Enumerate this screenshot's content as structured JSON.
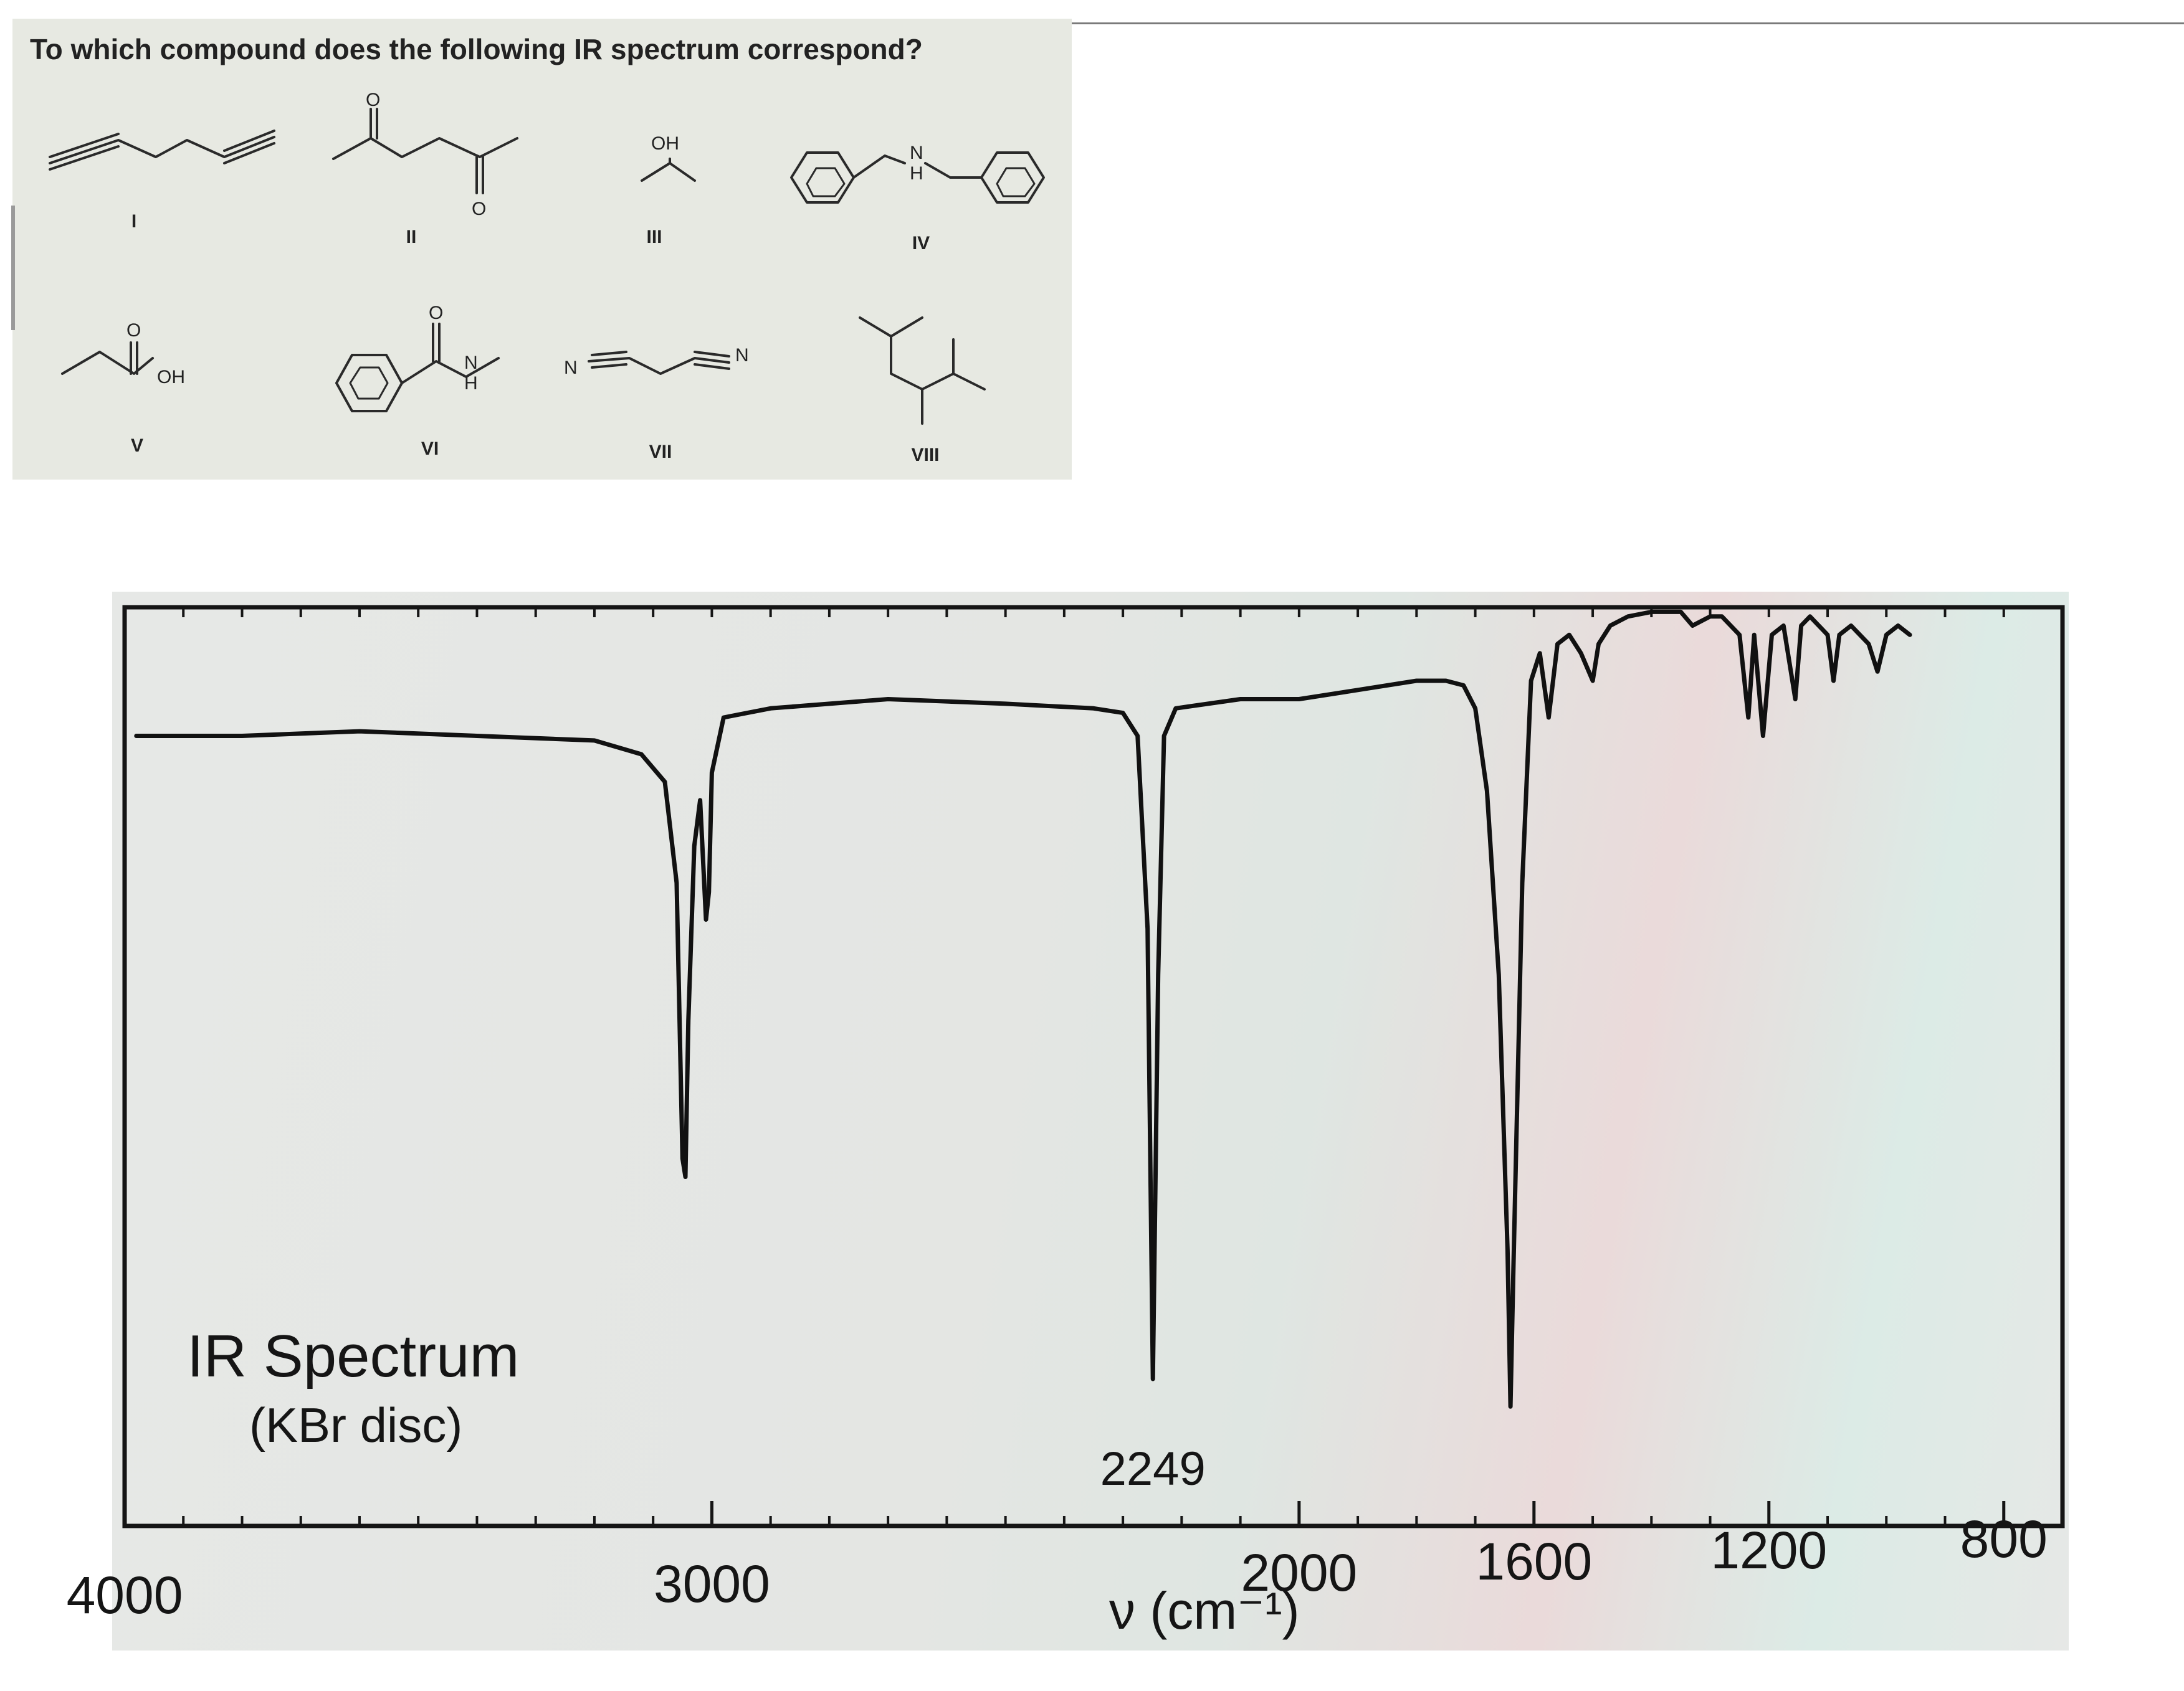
{
  "question": "To which compound does the following IR spectrum correspond?",
  "compounds": {
    "labels": [
      "I",
      "II",
      "III",
      "IV",
      "V",
      "VI",
      "VII",
      "VIII"
    ],
    "atom_labels": {
      "oh": "OH",
      "o": "O",
      "n": "N",
      "h": "H"
    }
  },
  "chart_data": {
    "type": "line",
    "title": "IR Spectrum",
    "subtitle": "(KBr disc)",
    "xlabel": "ν (cm⁻¹)",
    "x_axis_reversed": true,
    "xlim": [
      4000,
      700
    ],
    "x_ticks": [
      {
        "value": 4000,
        "label": "4000"
      },
      {
        "value": 3000,
        "label": "3000"
      },
      {
        "value": 2000,
        "label": "2000"
      },
      {
        "value": 1600,
        "label": "1600"
      },
      {
        "value": 1200,
        "label": "1200"
      },
      {
        "value": 800,
        "label": "800"
      }
    ],
    "y_quantity": "transmittance (%)",
    "ylim": [
      0,
      100
    ],
    "grid": false,
    "series": [
      {
        "color": "#111111",
        "points": [
          [
            3980,
            86
          ],
          [
            3800,
            86
          ],
          [
            3600,
            86.5
          ],
          [
            3400,
            86
          ],
          [
            3200,
            85.5
          ],
          [
            3120,
            84
          ],
          [
            3080,
            81
          ],
          [
            3060,
            70
          ],
          [
            3050,
            40
          ],
          [
            3045,
            38
          ],
          [
            3040,
            55
          ],
          [
            3030,
            74
          ],
          [
            3020,
            79
          ],
          [
            3010,
            66
          ],
          [
            3005,
            69
          ],
          [
            3000,
            82
          ],
          [
            2980,
            88
          ],
          [
            2900,
            89
          ],
          [
            2700,
            90
          ],
          [
            2500,
            89.5
          ],
          [
            2350,
            89
          ],
          [
            2300,
            88.5
          ],
          [
            2275,
            86
          ],
          [
            2258,
            65
          ],
          [
            2249,
            16
          ],
          [
            2240,
            60
          ],
          [
            2230,
            86
          ],
          [
            2210,
            89
          ],
          [
            2100,
            90
          ],
          [
            2000,
            90
          ],
          [
            1900,
            91
          ],
          [
            1800,
            92
          ],
          [
            1750,
            92
          ],
          [
            1720,
            91.5
          ],
          [
            1700,
            89
          ],
          [
            1680,
            80
          ],
          [
            1660,
            60
          ],
          [
            1645,
            30
          ],
          [
            1640,
            13
          ],
          [
            1635,
            28
          ],
          [
            1620,
            70
          ],
          [
            1605,
            92
          ],
          [
            1590,
            95
          ],
          [
            1575,
            88
          ],
          [
            1560,
            96
          ],
          [
            1540,
            97
          ],
          [
            1520,
            95
          ],
          [
            1500,
            92
          ],
          [
            1490,
            96
          ],
          [
            1470,
            98
          ],
          [
            1440,
            99
          ],
          [
            1400,
            99.5
          ],
          [
            1350,
            99.5
          ],
          [
            1330,
            98
          ],
          [
            1300,
            99
          ],
          [
            1280,
            99
          ],
          [
            1250,
            97
          ],
          [
            1235,
            88
          ],
          [
            1225,
            97
          ],
          [
            1210,
            86
          ],
          [
            1195,
            97
          ],
          [
            1175,
            98
          ],
          [
            1155,
            90
          ],
          [
            1145,
            98
          ],
          [
            1130,
            99
          ],
          [
            1100,
            97
          ],
          [
            1090,
            92
          ],
          [
            1080,
            97
          ],
          [
            1060,
            98
          ],
          [
            1030,
            96
          ],
          [
            1015,
            93
          ],
          [
            1000,
            97
          ],
          [
            980,
            98
          ],
          [
            960,
            97
          ]
        ]
      }
    ],
    "annotations": [
      {
        "x": 2249,
        "text": "2249"
      }
    ]
  }
}
